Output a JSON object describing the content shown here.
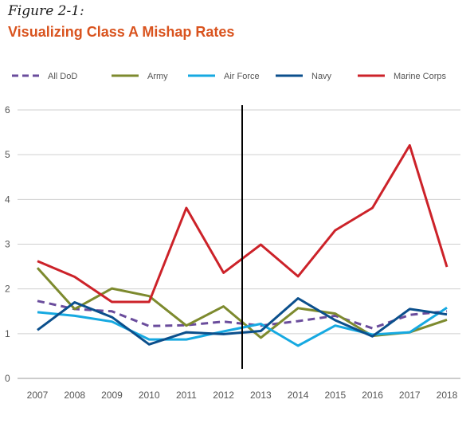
{
  "figure_label": "Figure 2-1:",
  "title": "Visualizing Class A Mishap Rates",
  "chart_data": {
    "type": "line",
    "x": [
      2007,
      2008,
      2009,
      2010,
      2011,
      2012,
      2013,
      2014,
      2015,
      2016,
      2017,
      2018
    ],
    "ylim": [
      0,
      6
    ],
    "yticks": [
      0,
      1,
      2,
      3,
      4,
      5,
      6
    ],
    "grid": true,
    "legend_position": "top",
    "vertical_marker_between": [
      2012,
      2013
    ],
    "series": [
      {
        "name": "All DoD",
        "color": "#6a4c9c",
        "style": "dashed",
        "values": [
          1.73,
          1.55,
          1.5,
          1.17,
          1.19,
          1.27,
          1.18,
          1.28,
          1.4,
          1.12,
          1.42,
          1.5
        ]
      },
      {
        "name": "Army",
        "color": "#7d8a2e",
        "style": "solid",
        "values": [
          2.47,
          1.55,
          2.01,
          1.84,
          1.18,
          1.61,
          0.91,
          1.57,
          1.45,
          0.95,
          1.03,
          1.31
        ]
      },
      {
        "name": "Air Force",
        "color": "#16a9e1",
        "style": "solid",
        "values": [
          1.48,
          1.4,
          1.27,
          0.87,
          0.87,
          1.05,
          1.22,
          0.73,
          1.18,
          0.98,
          1.03,
          1.58
        ]
      },
      {
        "name": "Navy",
        "color": "#0b4f8c",
        "style": "solid",
        "values": [
          1.08,
          1.7,
          1.37,
          0.76,
          1.03,
          0.99,
          1.06,
          1.79,
          1.3,
          0.94,
          1.55,
          1.43
        ]
      },
      {
        "name": "Marine Corps",
        "color": "#cc2229",
        "style": "solid",
        "values": [
          2.62,
          2.27,
          1.71,
          1.71,
          3.81,
          2.36,
          2.99,
          2.28,
          3.31,
          3.81,
          5.21,
          2.49
        ]
      }
    ]
  }
}
